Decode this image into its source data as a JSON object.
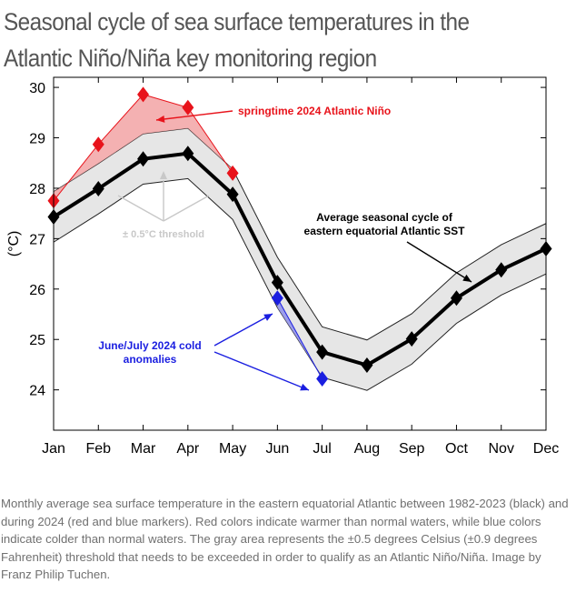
{
  "title": "Seasonal cycle of sea surface temperatures in the Atlantic Niño/Niña key monitoring region",
  "caption": "Monthly average sea surface temperature in the eastern equatorial Atlantic between 1982-2023 (black) and during 2024 (red and blue markers). Red colors indicate warmer than normal waters, while blue colors indicate colder than normal waters. The gray area represents the ±0.5 degrees Celsius (±0.9 degrees Fahrenheit) threshold that needs to be exceeded in order to qualify as an Atlantic Niño/Niña. Image by Franz Philip Tuchen.",
  "colors": {
    "average": "#000000",
    "warm": "#e8131b",
    "cold": "#1a1ee0",
    "band": "#e6e6e6",
    "threshold_annotation": "#c8c8c8"
  },
  "chart_data": {
    "type": "line",
    "categories": [
      "Jan",
      "Feb",
      "Mar",
      "Apr",
      "May",
      "Jun",
      "Jul",
      "Aug",
      "Sep",
      "Oct",
      "Nov",
      "Dec"
    ],
    "ylabel": "(°C)",
    "ylim": [
      23.2,
      30.2
    ],
    "yticks": [
      24,
      25,
      26,
      27,
      28,
      29,
      30
    ],
    "grid": false,
    "band_halfwidth": 0.5,
    "series": [
      {
        "values": [
          27.43,
          27.99,
          28.58,
          28.69,
          27.88,
          26.13,
          24.75,
          24.49,
          25.01,
          25.82,
          26.38,
          26.8
        ]
      },
      {
        "x": [
          "Jan",
          "Feb",
          "Mar",
          "Apr",
          "May"
        ],
        "values": [
          27.75,
          28.87,
          29.86,
          29.6,
          28.3
        ]
      },
      {
        "x": [
          "Jun",
          "Jul"
        ],
        "values": [
          25.82,
          24.22
        ]
      }
    ],
    "annotations": [
      {
        "text": "springtime 2024 Atlantic Niño"
      },
      {
        "lines": [
          "Average seasonal cycle of",
          "eastern equatorial Atlantic SST"
        ]
      },
      {
        "text": "± 0.5°C threshold"
      },
      {
        "lines": [
          "June/July 2024 cold",
          "anomalies"
        ]
      }
    ]
  }
}
